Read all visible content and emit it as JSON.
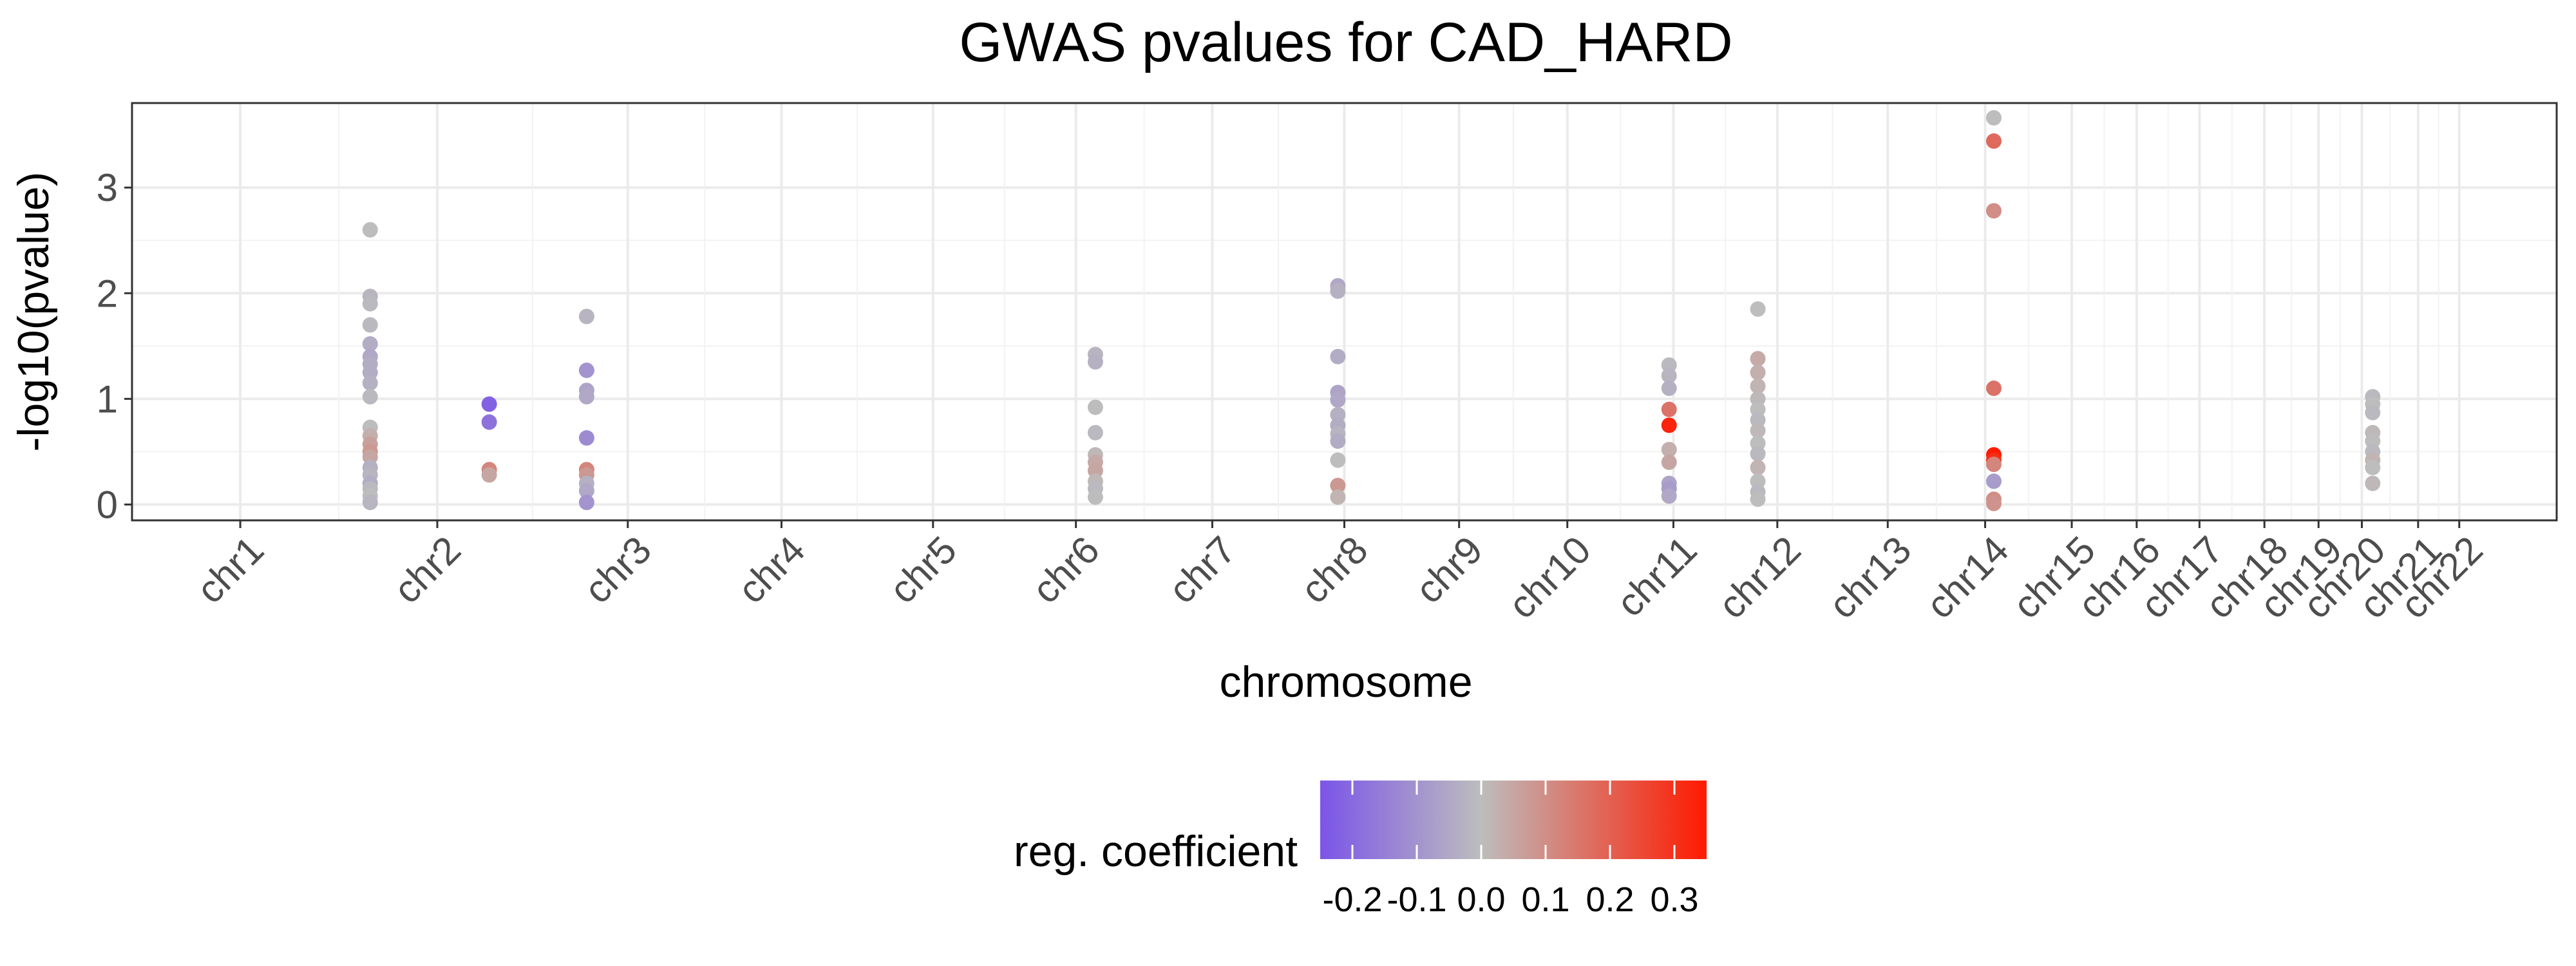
{
  "chart_data": {
    "type": "scatter",
    "title": "GWAS pvalues for CAD_HARD",
    "xlabel": "chromosome",
    "ylabel": "-log10(pvalue)",
    "ylim": [
      -0.15,
      3.8
    ],
    "y_ticks": [
      0,
      1,
      2,
      3
    ],
    "grid": true,
    "x_positions": [
      0,
      0.91,
      1.79,
      2.5,
      3.2,
      3.86,
      4.49,
      5.1,
      5.63,
      6.13,
      6.62,
      7.1,
      7.61,
      8.06,
      8.46,
      8.76,
      9.05,
      9.35,
      9.6,
      9.8,
      10.06,
      10.25
    ],
    "categories": [
      "chr1",
      "chr2",
      "chr3",
      "chr4",
      "chr5",
      "chr6",
      "chr7",
      "chr8",
      "chr9",
      "chr10",
      "chr11",
      "chr12",
      "chr13",
      "chr14",
      "chr15",
      "chr16",
      "chr17",
      "chr18",
      "chr19",
      "chr20",
      "chr21",
      "chr22"
    ],
    "xlim": [
      -0.5,
      10.7
    ],
    "color_scale": {
      "title": "reg. coefficient",
      "min": -0.25,
      "max": 0.35,
      "mid_value": 0.0,
      "low_color": "#7b55e8",
      "mid_color": "#bdbdbd",
      "high_color": "#ff1a00",
      "ticks": [
        -0.2,
        -0.1,
        0.0,
        0.1,
        0.2,
        0.3
      ],
      "tick_labels": [
        "-0.2",
        "-0.1",
        "0.0",
        "0.1",
        "0.2",
        "0.3"
      ],
      "position": "bottom"
    },
    "points": [
      {
        "x": 0.6,
        "y": 2.6,
        "c": 0.0
      },
      {
        "x": 0.6,
        "y": 1.97,
        "c": -0.02
      },
      {
        "x": 0.6,
        "y": 1.9,
        "c": -0.01
      },
      {
        "x": 0.6,
        "y": 1.7,
        "c": -0.01
      },
      {
        "x": 0.6,
        "y": 1.52,
        "c": -0.04
      },
      {
        "x": 0.6,
        "y": 1.4,
        "c": -0.05
      },
      {
        "x": 0.6,
        "y": 1.33,
        "c": -0.04
      },
      {
        "x": 0.6,
        "y": 1.25,
        "c": -0.04
      },
      {
        "x": 0.6,
        "y": 1.15,
        "c": -0.03
      },
      {
        "x": 0.6,
        "y": 1.02,
        "c": -0.01
      },
      {
        "x": 0.6,
        "y": 0.73,
        "c": 0.0
      },
      {
        "x": 0.6,
        "y": 0.65,
        "c": 0.03
      },
      {
        "x": 0.6,
        "y": 0.57,
        "c": 0.06
      },
      {
        "x": 0.6,
        "y": 0.5,
        "c": 0.08
      },
      {
        "x": 0.6,
        "y": 0.45,
        "c": 0.05
      },
      {
        "x": 0.6,
        "y": 0.35,
        "c": -0.03
      },
      {
        "x": 0.6,
        "y": 0.28,
        "c": -0.02
      },
      {
        "x": 0.6,
        "y": 0.2,
        "c": -0.04
      },
      {
        "x": 0.6,
        "y": 0.15,
        "c": -0.01
      },
      {
        "x": 0.6,
        "y": 0.08,
        "c": 0.0
      },
      {
        "x": 0.6,
        "y": 0.02,
        "c": -0.02
      },
      {
        "x": 1.15,
        "y": 0.95,
        "c": -0.22
      },
      {
        "x": 1.15,
        "y": 0.78,
        "c": -0.18
      },
      {
        "x": 1.15,
        "y": 0.33,
        "c": 0.12
      },
      {
        "x": 1.15,
        "y": 0.28,
        "c": 0.05
      },
      {
        "x": 1.6,
        "y": 1.78,
        "c": -0.02
      },
      {
        "x": 1.6,
        "y": 1.27,
        "c": -0.1
      },
      {
        "x": 1.6,
        "y": 1.08,
        "c": -0.06
      },
      {
        "x": 1.6,
        "y": 1.02,
        "c": -0.05
      },
      {
        "x": 1.6,
        "y": 0.63,
        "c": -0.12
      },
      {
        "x": 1.6,
        "y": 0.33,
        "c": 0.12
      },
      {
        "x": 1.6,
        "y": 0.28,
        "c": 0.08
      },
      {
        "x": 1.6,
        "y": 0.2,
        "c": -0.03
      },
      {
        "x": 1.6,
        "y": 0.13,
        "c": -0.05
      },
      {
        "x": 1.6,
        "y": 0.02,
        "c": -0.1
      },
      {
        "x": 3.95,
        "y": 1.42,
        "c": -0.02
      },
      {
        "x": 3.95,
        "y": 1.35,
        "c": -0.03
      },
      {
        "x": 3.95,
        "y": 0.92,
        "c": 0.0
      },
      {
        "x": 3.95,
        "y": 0.68,
        "c": -0.01
      },
      {
        "x": 3.95,
        "y": 0.47,
        "c": 0.01
      },
      {
        "x": 3.95,
        "y": 0.4,
        "c": 0.04
      },
      {
        "x": 3.95,
        "y": 0.32,
        "c": 0.05
      },
      {
        "x": 3.95,
        "y": 0.22,
        "c": 0.01
      },
      {
        "x": 3.95,
        "y": 0.15,
        "c": -0.01
      },
      {
        "x": 3.95,
        "y": 0.07,
        "c": 0.0
      },
      {
        "x": 5.07,
        "y": 2.07,
        "c": -0.05
      },
      {
        "x": 5.07,
        "y": 2.02,
        "c": -0.03
      },
      {
        "x": 5.07,
        "y": 1.4,
        "c": -0.04
      },
      {
        "x": 5.07,
        "y": 1.06,
        "c": -0.06
      },
      {
        "x": 5.07,
        "y": 0.99,
        "c": -0.05
      },
      {
        "x": 5.07,
        "y": 0.85,
        "c": -0.03
      },
      {
        "x": 5.07,
        "y": 0.75,
        "c": -0.04
      },
      {
        "x": 5.07,
        "y": 0.67,
        "c": -0.02
      },
      {
        "x": 5.07,
        "y": 0.6,
        "c": -0.04
      },
      {
        "x": 5.07,
        "y": 0.42,
        "c": 0.0
      },
      {
        "x": 5.07,
        "y": 0.18,
        "c": 0.08
      },
      {
        "x": 5.07,
        "y": 0.07,
        "c": 0.02
      },
      {
        "x": 6.6,
        "y": 1.32,
        "c": -0.01
      },
      {
        "x": 6.6,
        "y": 1.22,
        "c": -0.02
      },
      {
        "x": 6.6,
        "y": 1.1,
        "c": -0.03
      },
      {
        "x": 6.6,
        "y": 0.9,
        "c": 0.16
      },
      {
        "x": 6.6,
        "y": 0.75,
        "c": 0.33
      },
      {
        "x": 6.6,
        "y": 0.52,
        "c": 0.03
      },
      {
        "x": 6.6,
        "y": 0.4,
        "c": 0.05
      },
      {
        "x": 6.6,
        "y": 0.2,
        "c": -0.06
      },
      {
        "x": 6.6,
        "y": 0.15,
        "c": -0.08
      },
      {
        "x": 6.6,
        "y": 0.08,
        "c": -0.05
      },
      {
        "x": 7.01,
        "y": 1.85,
        "c": 0.0
      },
      {
        "x": 7.01,
        "y": 1.38,
        "c": 0.04
      },
      {
        "x": 7.01,
        "y": 1.25,
        "c": 0.03
      },
      {
        "x": 7.01,
        "y": 1.12,
        "c": 0.02
      },
      {
        "x": 7.01,
        "y": 1.0,
        "c": 0.01
      },
      {
        "x": 7.01,
        "y": 0.9,
        "c": 0.0
      },
      {
        "x": 7.01,
        "y": 0.8,
        "c": -0.01
      },
      {
        "x": 7.01,
        "y": 0.7,
        "c": 0.01
      },
      {
        "x": 7.01,
        "y": 0.58,
        "c": 0.0
      },
      {
        "x": 7.01,
        "y": 0.48,
        "c": -0.01
      },
      {
        "x": 7.01,
        "y": 0.35,
        "c": 0.02
      },
      {
        "x": 7.01,
        "y": 0.22,
        "c": 0.0
      },
      {
        "x": 7.01,
        "y": 0.12,
        "c": -0.01
      },
      {
        "x": 7.01,
        "y": 0.05,
        "c": 0.0
      },
      {
        "x": 8.1,
        "y": 3.66,
        "c": 0.0
      },
      {
        "x": 8.1,
        "y": 3.44,
        "c": 0.18
      },
      {
        "x": 8.1,
        "y": 2.78,
        "c": 0.1
      },
      {
        "x": 8.1,
        "y": 1.1,
        "c": 0.16
      },
      {
        "x": 8.1,
        "y": 0.47,
        "c": 0.35
      },
      {
        "x": 8.1,
        "y": 0.42,
        "c": 0.31
      },
      {
        "x": 8.1,
        "y": 0.38,
        "c": 0.12
      },
      {
        "x": 8.1,
        "y": 0.22,
        "c": -0.08
      },
      {
        "x": 8.1,
        "y": 0.05,
        "c": 0.1
      },
      {
        "x": 8.1,
        "y": 0.01,
        "c": 0.09
      },
      {
        "x": 9.85,
        "y": 1.02,
        "c": -0.01
      },
      {
        "x": 9.85,
        "y": 0.95,
        "c": 0.0
      },
      {
        "x": 9.85,
        "y": 0.87,
        "c": -0.01
      },
      {
        "x": 9.85,
        "y": 0.68,
        "c": 0.01
      },
      {
        "x": 9.85,
        "y": 0.6,
        "c": 0.0
      },
      {
        "x": 9.85,
        "y": 0.5,
        "c": -0.01
      },
      {
        "x": 9.85,
        "y": 0.42,
        "c": 0.02
      },
      {
        "x": 9.85,
        "y": 0.35,
        "c": 0.0
      },
      {
        "x": 9.85,
        "y": 0.2,
        "c": 0.01
      }
    ]
  }
}
